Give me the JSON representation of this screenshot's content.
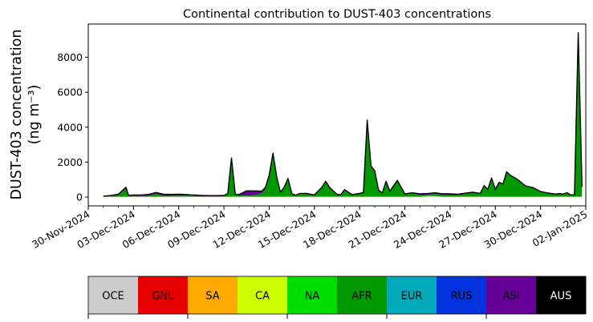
{
  "chart_data": {
    "type": "area",
    "stacked": true,
    "title": "Continental contribution to DUST-403 concentrations",
    "ylabel_line1": "DUST-403 concentration",
    "ylabel_line2": "(ng m⁻³)",
    "xlabel": "",
    "xlim": [
      "2024-11-30",
      "2025-01-02"
    ],
    "ylim": [
      -500,
      9900
    ],
    "yticks": [
      0,
      2000,
      4000,
      6000,
      8000
    ],
    "ytick_labels": [
      "0",
      "2000",
      "4000",
      "6000",
      "8000"
    ],
    "xticks": [
      "2024-11-30",
      "2024-12-03",
      "2024-12-06",
      "2024-12-09",
      "2024-12-12",
      "2024-12-15",
      "2024-12-18",
      "2024-12-21",
      "2024-12-24",
      "2024-12-27",
      "2024-12-30",
      "2025-01-02"
    ],
    "xtick_labels": [
      "30-Nov-2024",
      "03-Dec-2024",
      "06-Dec-2024",
      "09-Dec-2024",
      "12-Dec-2024",
      "15-Dec-2024",
      "18-Dec-2024",
      "21-Dec-2024",
      "24-Dec-2024",
      "27-Dec-2024",
      "30-Dec-2024",
      "02-Jan-2025"
    ],
    "grid": false,
    "legend_position": "below",
    "x": [
      "2024-12-01 00:00",
      "2024-12-01 12:00",
      "2024-12-02 00:00",
      "2024-12-02 12:00",
      "2024-12-02 16:00",
      "2024-12-02 20:00",
      "2024-12-03 00:00",
      "2024-12-03 12:00",
      "2024-12-04 00:00",
      "2024-12-04 12:00",
      "2024-12-05 00:00",
      "2024-12-05 12:00",
      "2024-12-06 00:00",
      "2024-12-06 12:00",
      "2024-12-07 00:00",
      "2024-12-07 12:00",
      "2024-12-08 00:00",
      "2024-12-08 12:00",
      "2024-12-09 00:00",
      "2024-12-09 06:00",
      "2024-12-09 12:00",
      "2024-12-09 18:00",
      "2024-12-10 00:00",
      "2024-12-10 12:00",
      "2024-12-11 00:00",
      "2024-12-11 12:00",
      "2024-12-11 18:00",
      "2024-12-12 00:00",
      "2024-12-12 06:00",
      "2024-12-12 12:00",
      "2024-12-12 18:00",
      "2024-12-13 00:00",
      "2024-12-13 06:00",
      "2024-12-13 12:00",
      "2024-12-13 18:00",
      "2024-12-14 00:00",
      "2024-12-14 12:00",
      "2024-12-15 00:00",
      "2024-12-15 12:00",
      "2024-12-15 18:00",
      "2024-12-16 00:00",
      "2024-12-16 12:00",
      "2024-12-16 18:00",
      "2024-12-17 00:00",
      "2024-12-17 12:00",
      "2024-12-18 00:00",
      "2024-12-18 06:00",
      "2024-12-18 12:00",
      "2024-12-18 18:00",
      "2024-12-19 00:00",
      "2024-12-19 06:00",
      "2024-12-19 12:00",
      "2024-12-19 18:00",
      "2024-12-20 00:00",
      "2024-12-20 12:00",
      "2024-12-21 00:00",
      "2024-12-21 12:00",
      "2024-12-22 00:00",
      "2024-12-22 12:00",
      "2024-12-23 00:00",
      "2024-12-23 12:00",
      "2024-12-24 00:00",
      "2024-12-24 12:00",
      "2024-12-25 00:00",
      "2024-12-25 12:00",
      "2024-12-26 00:00",
      "2024-12-26 06:00",
      "2024-12-26 12:00",
      "2024-12-26 18:00",
      "2024-12-27 00:00",
      "2024-12-27 06:00",
      "2024-12-27 12:00",
      "2024-12-27 18:00",
      "2024-12-28 00:00",
      "2024-12-28 12:00",
      "2024-12-29 00:00",
      "2024-12-29 12:00",
      "2024-12-30 00:00",
      "2024-12-30 12:00",
      "2024-12-31 00:00",
      "2024-12-31 06:00",
      "2024-12-31 12:00",
      "2024-12-31 18:00",
      "2025-01-01 00:00",
      "2025-01-01 06:00",
      "2025-01-01 12:00",
      "2025-01-01 18:00"
    ],
    "series": [
      {
        "name": "OCE",
        "color": "#cccccc",
        "values": [
          0,
          0,
          0,
          0,
          0,
          0,
          0,
          0,
          0,
          0,
          0,
          0,
          0,
          0,
          0,
          0,
          0,
          0,
          0,
          0,
          0,
          0,
          0,
          0,
          0,
          0,
          0,
          0,
          0,
          0,
          0,
          0,
          0,
          0,
          0,
          0,
          0,
          0,
          0,
          0,
          0,
          0,
          0,
          0,
          0,
          0,
          0,
          0,
          0,
          0,
          0,
          0,
          0,
          0,
          0,
          0,
          0,
          0,
          0,
          0,
          0,
          0,
          0,
          0,
          0,
          0,
          0,
          0,
          0,
          0,
          0,
          0,
          0,
          0,
          0,
          0,
          0,
          0,
          0,
          0,
          0,
          0,
          0,
          0,
          0,
          0,
          0
        ]
      },
      {
        "name": "GNL",
        "color": "#e60000",
        "values": [
          0,
          0,
          0,
          0,
          0,
          0,
          0,
          0,
          0,
          0,
          0,
          0,
          0,
          0,
          0,
          0,
          0,
          0,
          0,
          0,
          0,
          0,
          0,
          0,
          0,
          0,
          0,
          0,
          0,
          0,
          0,
          0,
          0,
          0,
          0,
          0,
          0,
          0,
          0,
          0,
          0,
          0,
          0,
          0,
          0,
          0,
          0,
          0,
          0,
          0,
          0,
          0,
          0,
          0,
          0,
          0,
          0,
          0,
          0,
          0,
          0,
          0,
          0,
          0,
          0,
          0,
          0,
          0,
          0,
          0,
          0,
          0,
          0,
          0,
          0,
          0,
          0,
          0,
          0,
          0,
          0,
          0,
          0,
          0,
          0,
          0,
          0
        ]
      },
      {
        "name": "SA",
        "color": "#ffaa00",
        "values": [
          5,
          5,
          5,
          5,
          5,
          5,
          5,
          5,
          5,
          5,
          5,
          5,
          5,
          5,
          5,
          5,
          5,
          5,
          5,
          5,
          5,
          5,
          5,
          5,
          5,
          5,
          5,
          5,
          5,
          5,
          5,
          5,
          5,
          5,
          5,
          5,
          5,
          5,
          5,
          5,
          5,
          5,
          5,
          5,
          5,
          5,
          5,
          5,
          5,
          5,
          5,
          5,
          5,
          5,
          5,
          5,
          5,
          5,
          5,
          5,
          5,
          5,
          5,
          5,
          5,
          5,
          5,
          5,
          5,
          5,
          5,
          5,
          5,
          5,
          5,
          5,
          5,
          5,
          5,
          5,
          5,
          5,
          5,
          5,
          5,
          5,
          5
        ]
      },
      {
        "name": "CA",
        "color": "#ccff00",
        "values": [
          20,
          20,
          20,
          20,
          20,
          20,
          20,
          20,
          20,
          20,
          20,
          20,
          20,
          20,
          20,
          20,
          20,
          20,
          20,
          20,
          20,
          20,
          20,
          20,
          20,
          20,
          20,
          20,
          20,
          20,
          20,
          20,
          20,
          20,
          20,
          20,
          20,
          20,
          20,
          20,
          20,
          20,
          20,
          20,
          20,
          20,
          20,
          20,
          20,
          20,
          20,
          20,
          20,
          20,
          20,
          20,
          20,
          20,
          60,
          60,
          20,
          20,
          20,
          20,
          20,
          20,
          20,
          20,
          20,
          20,
          20,
          20,
          20,
          20,
          20,
          20,
          20,
          20,
          20,
          20,
          20,
          20,
          20,
          20,
          20,
          20,
          20
        ]
      },
      {
        "name": "NA",
        "color": "#00dd00",
        "values": [
          0,
          0,
          0,
          0,
          0,
          0,
          0,
          0,
          0,
          0,
          0,
          0,
          0,
          0,
          0,
          0,
          0,
          0,
          0,
          0,
          0,
          0,
          0,
          0,
          0,
          0,
          0,
          0,
          0,
          0,
          0,
          0,
          0,
          0,
          0,
          0,
          0,
          0,
          0,
          0,
          0,
          0,
          0,
          0,
          0,
          0,
          0,
          0,
          0,
          0,
          0,
          0,
          0,
          0,
          0,
          0,
          0,
          0,
          0,
          0,
          0,
          0,
          0,
          0,
          0,
          0,
          0,
          0,
          0,
          0,
          0,
          0,
          0,
          0,
          0,
          0,
          0,
          0,
          0,
          0,
          0,
          0,
          0,
          0,
          0,
          0,
          0
        ]
      },
      {
        "name": "AFR",
        "color": "#009900",
        "values": [
          5,
          25,
          75,
          480,
          40,
          40,
          60,
          40,
          50,
          160,
          45,
          50,
          60,
          60,
          50,
          30,
          30,
          30,
          40,
          150,
          2150,
          100,
          70,
          60,
          80,
          200,
          450,
          1200,
          2450,
          1100,
          200,
          500,
          1000,
          150,
          50,
          150,
          150,
          50,
          500,
          850,
          500,
          80,
          50,
          350,
          80,
          150,
          200,
          4300,
          1700,
          1400,
          350,
          180,
          850,
          280,
          900,
          120,
          180,
          100,
          60,
          120,
          100,
          100,
          80,
          150,
          220,
          150,
          600,
          400,
          1050,
          400,
          800,
          700,
          1400,
          1200,
          950,
          600,
          500,
          280,
          180,
          120,
          150,
          120,
          200,
          80,
          100,
          9300,
          500
        ]
      },
      {
        "name": "EUR",
        "color": "#00aabb",
        "values": [
          0,
          0,
          0,
          0,
          0,
          0,
          0,
          0,
          0,
          0,
          0,
          0,
          0,
          0,
          0,
          0,
          0,
          0,
          0,
          0,
          0,
          0,
          0,
          0,
          0,
          0,
          0,
          0,
          0,
          0,
          0,
          0,
          0,
          0,
          0,
          0,
          0,
          0,
          0,
          0,
          0,
          0,
          0,
          0,
          0,
          0,
          0,
          0,
          0,
          0,
          0,
          0,
          0,
          0,
          0,
          0,
          0,
          0,
          0,
          0,
          0,
          0,
          0,
          0,
          0,
          0,
          0,
          0,
          0,
          0,
          0,
          0,
          0,
          0,
          0,
          0,
          0,
          0,
          0,
          0,
          0,
          0,
          0,
          0,
          0,
          0,
          0
        ]
      },
      {
        "name": "RUS",
        "color": "#0033dd",
        "values": [
          0,
          0,
          0,
          0,
          0,
          0,
          0,
          0,
          0,
          0,
          0,
          0,
          0,
          0,
          0,
          0,
          0,
          0,
          0,
          0,
          0,
          0,
          0,
          0,
          0,
          0,
          0,
          0,
          0,
          0,
          0,
          0,
          0,
          0,
          0,
          0,
          0,
          0,
          0,
          0,
          0,
          0,
          0,
          0,
          0,
          0,
          0,
          0,
          0,
          0,
          0,
          0,
          0,
          0,
          0,
          0,
          0,
          0,
          0,
          0,
          0,
          0,
          0,
          0,
          0,
          0,
          0,
          0,
          0,
          0,
          0,
          0,
          0,
          0,
          0,
          0,
          0,
          0,
          0,
          0,
          0,
          0,
          0,
          0,
          0,
          0,
          0
        ]
      },
      {
        "name": "ASI",
        "color": "#660099",
        "values": [
          20,
          40,
          70,
          60,
          50,
          40,
          40,
          60,
          80,
          80,
          100,
          80,
          80,
          60,
          50,
          40,
          30,
          30,
          30,
          30,
          60,
          50,
          50,
          270,
          250,
          120,
          80,
          40,
          40,
          50,
          50,
          50,
          40,
          30,
          30,
          30,
          40,
          50,
          40,
          30,
          40,
          50,
          60,
          50,
          40,
          40,
          40,
          80,
          60,
          80,
          40,
          30,
          30,
          30,
          30,
          40,
          40,
          60,
          80,
          60,
          60,
          60,
          60,
          50,
          40,
          40,
          30,
          20,
          20,
          20,
          20,
          20,
          20,
          20,
          20,
          20,
          20,
          20,
          30,
          30,
          30,
          30,
          30,
          20,
          20,
          80,
          70
        ]
      },
      {
        "name": "AUS",
        "color": "#000000",
        "values": [
          0,
          0,
          0,
          0,
          0,
          0,
          0,
          0,
          0,
          0,
          0,
          0,
          0,
          0,
          0,
          0,
          0,
          0,
          0,
          0,
          0,
          0,
          0,
          0,
          0,
          0,
          0,
          0,
          0,
          0,
          0,
          0,
          0,
          0,
          0,
          0,
          0,
          0,
          0,
          0,
          0,
          0,
          0,
          0,
          0,
          0,
          0,
          0,
          0,
          0,
          0,
          0,
          0,
          0,
          0,
          0,
          0,
          0,
          0,
          0,
          0,
          0,
          0,
          0,
          0,
          0,
          0,
          0,
          0,
          0,
          0,
          0,
          0,
          0,
          0,
          0,
          0,
          0,
          0,
          0,
          0,
          0,
          0,
          0,
          0,
          0,
          0
        ]
      }
    ],
    "legend": [
      {
        "label": "OCE",
        "color": "#cccccc",
        "text_color": "#000000"
      },
      {
        "label": "GNL",
        "color": "#e60000",
        "text_color": "#000000"
      },
      {
        "label": "SA",
        "color": "#ffaa00",
        "text_color": "#000000"
      },
      {
        "label": "CA",
        "color": "#ccff00",
        "text_color": "#000000"
      },
      {
        "label": "NA",
        "color": "#00dd00",
        "text_color": "#000000"
      },
      {
        "label": "AFR",
        "color": "#009900",
        "text_color": "#000000"
      },
      {
        "label": "EUR",
        "color": "#00aabb",
        "text_color": "#000000"
      },
      {
        "label": "RUS",
        "color": "#0033dd",
        "text_color": "#000000"
      },
      {
        "label": "ASI",
        "color": "#660099",
        "text_color": "#000000"
      },
      {
        "label": "AUS",
        "color": "#000000",
        "text_color": "#ffffff"
      }
    ]
  }
}
